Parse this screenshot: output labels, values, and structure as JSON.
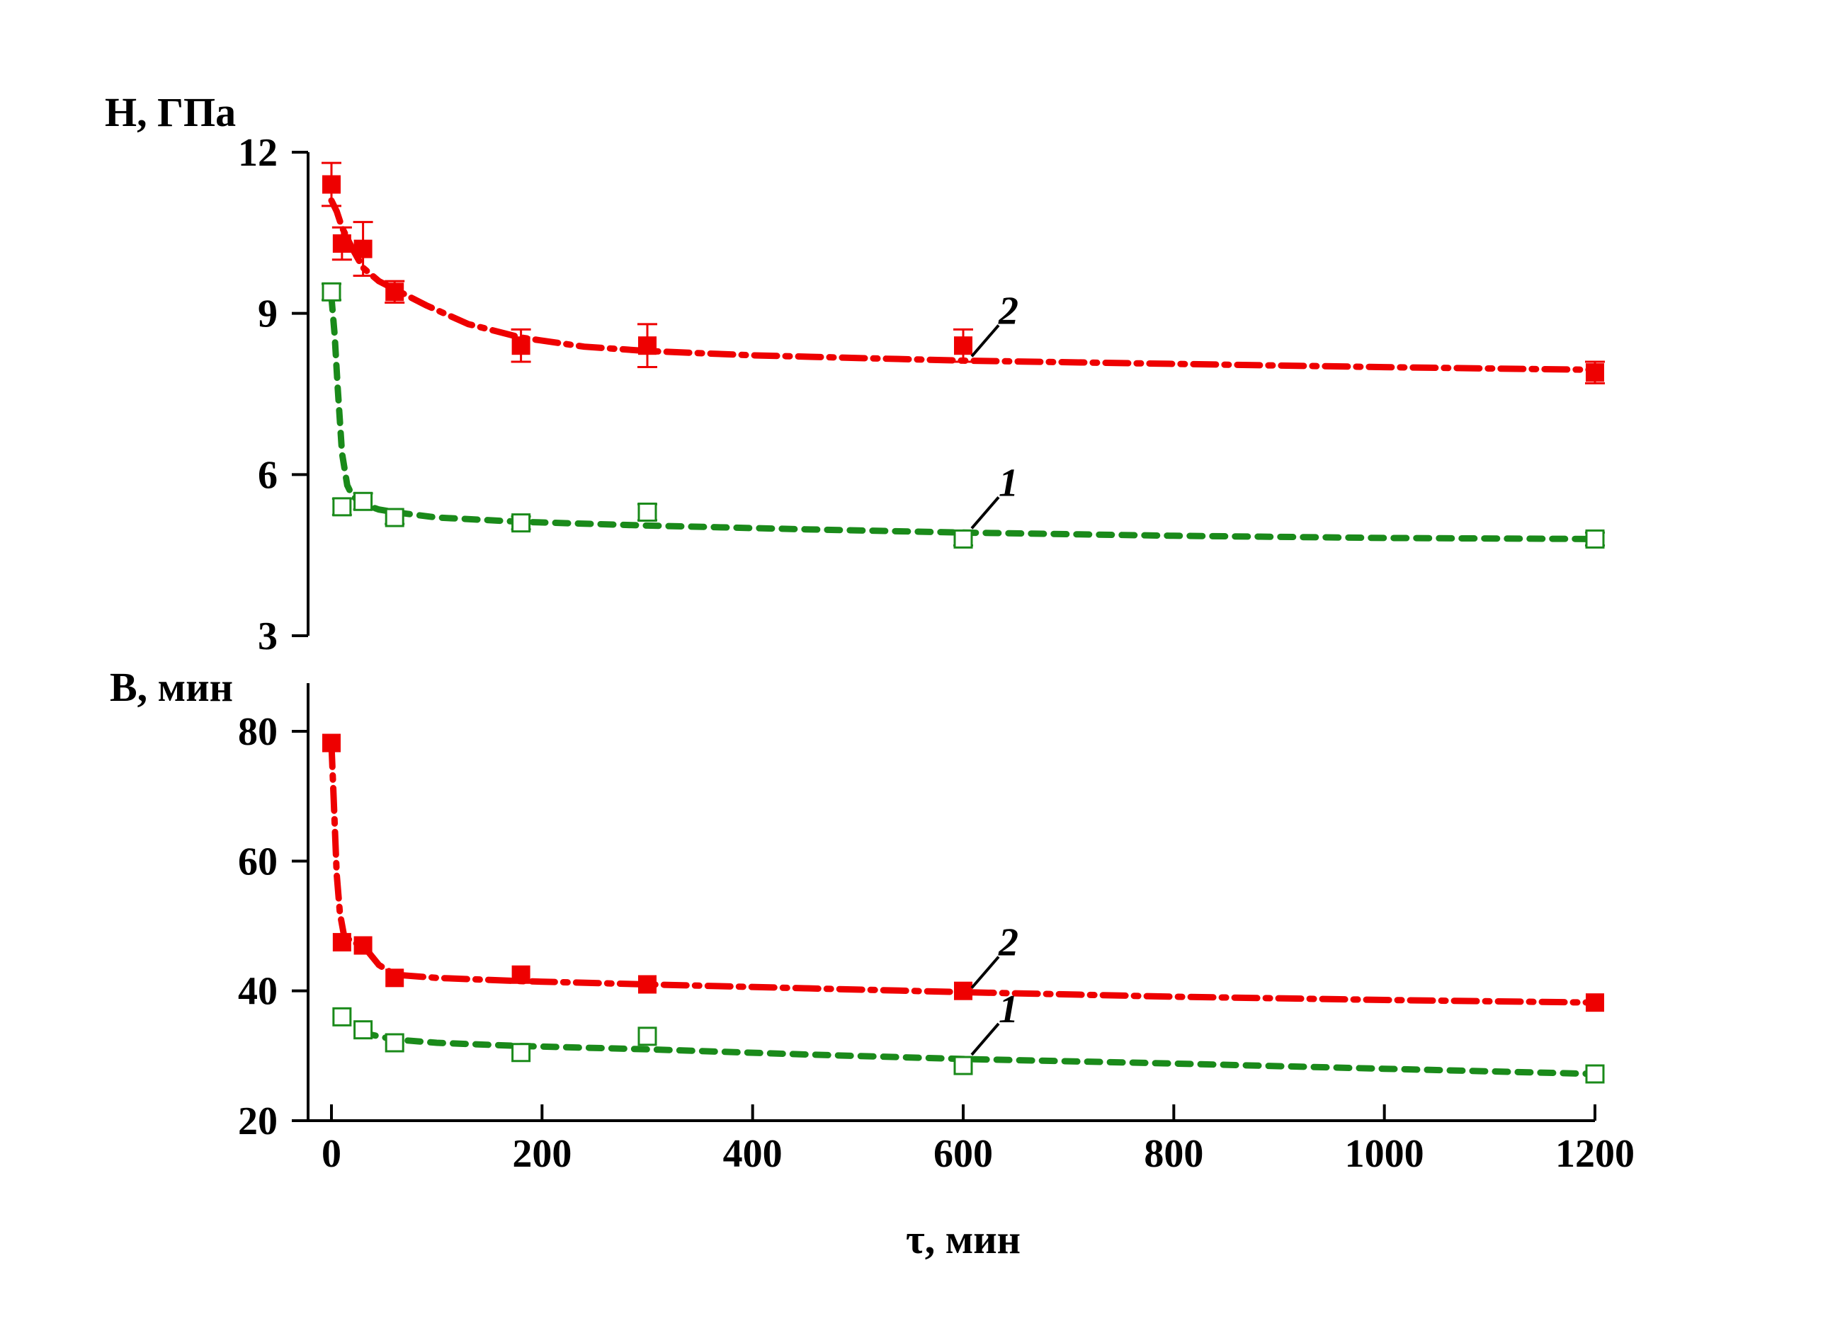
{
  "chart_data": [
    {
      "type": "scatter",
      "ylabel": "H, ГПа",
      "ylim": [
        3,
        12
      ],
      "yticks": [
        3,
        6,
        9,
        12
      ],
      "xlim": [
        0,
        1200
      ],
      "grid": false,
      "series": [
        {
          "name": "1",
          "marker": "open-square",
          "color": "#1a8a1a",
          "x": [
            0,
            10,
            30,
            60,
            180,
            300,
            600,
            1200
          ],
          "y": [
            9.4,
            5.4,
            5.5,
            5.2,
            5.1,
            5.3,
            4.8,
            4.8
          ],
          "error": [
            0.15,
            0.15,
            0.15,
            0.12,
            0.12,
            0.15,
            0.12,
            0.12
          ],
          "fit_x": [
            0,
            3,
            6,
            10,
            15,
            20,
            30,
            45,
            60,
            100,
            180,
            300,
            450,
            600,
            800,
            1000,
            1200
          ],
          "fit_y": [
            9.3,
            8.6,
            7.6,
            6.4,
            5.8,
            5.6,
            5.45,
            5.35,
            5.3,
            5.2,
            5.12,
            5.05,
            4.98,
            4.92,
            4.86,
            4.82,
            4.8
          ]
        },
        {
          "name": "2",
          "marker": "filled-square",
          "color": "#ee0000",
          "x": [
            0,
            10,
            30,
            60,
            180,
            300,
            600,
            1200
          ],
          "y": [
            11.4,
            10.3,
            10.2,
            9.4,
            8.4,
            8.4,
            8.4,
            7.9
          ],
          "error": [
            0.4,
            0.3,
            0.5,
            0.2,
            0.3,
            0.4,
            0.3,
            0.2
          ],
          "fit_x": [
            0,
            5,
            10,
            20,
            30,
            45,
            60,
            90,
            130,
            180,
            240,
            300,
            400,
            500,
            600,
            800,
            1000,
            1200
          ],
          "fit_y": [
            11.1,
            10.9,
            10.6,
            10.2,
            9.85,
            9.6,
            9.45,
            9.15,
            8.8,
            8.55,
            8.38,
            8.3,
            8.22,
            8.17,
            8.12,
            8.06,
            8.0,
            7.95
          ]
        }
      ],
      "curve_labels": [
        "1",
        "2"
      ]
    },
    {
      "type": "scatter",
      "ylabel": "B, мин",
      "xlabel": "τ, мин",
      "ylim": [
        20,
        87
      ],
      "yticks": [
        20,
        40,
        60,
        80
      ],
      "xlim": [
        -20,
        1200
      ],
      "xticks": [
        0,
        200,
        400,
        600,
        800,
        1000,
        1200
      ],
      "grid": false,
      "series": [
        {
          "name": "1",
          "marker": "open-square",
          "color": "#1a8a1a",
          "x": [
            10,
            30,
            60,
            180,
            300,
            600,
            1200
          ],
          "y": [
            36,
            34,
            32,
            30.5,
            33,
            28.5,
            27.2
          ],
          "fit_x": [
            30,
            60,
            100,
            180,
            300,
            450,
            600,
            800,
            1000,
            1200
          ],
          "fit_y": [
            33.5,
            32.5,
            32,
            31.5,
            31,
            30.2,
            29.5,
            28.8,
            28.0,
            27.2
          ]
        },
        {
          "name": "2",
          "marker": "filled-square",
          "color": "#ee0000",
          "x": [
            0,
            10,
            30,
            60,
            180,
            300,
            600,
            1200
          ],
          "y": [
            78.2,
            47.5,
            47,
            42,
            42.5,
            41,
            40,
            38.2
          ],
          "fit_x": [
            0,
            2,
            5,
            8,
            12,
            20,
            30,
            45,
            60,
            100,
            180,
            300,
            450,
            600,
            800,
            1000,
            1200
          ],
          "fit_y": [
            78,
            70,
            58,
            52,
            48.5,
            47.5,
            47,
            44,
            42.5,
            42,
            41.5,
            41,
            40.4,
            39.8,
            39.1,
            38.6,
            38.2
          ]
        }
      ],
      "curve_labels": [
        "1",
        "2"
      ]
    }
  ]
}
